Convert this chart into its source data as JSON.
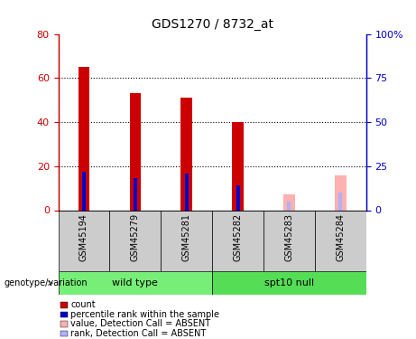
{
  "title": "GDS1270 / 8732_at",
  "samples": [
    "GSM45194",
    "GSM45279",
    "GSM45281",
    "GSM45282",
    "GSM45283",
    "GSM45284"
  ],
  "count_values": [
    65,
    53,
    51,
    40,
    0,
    0
  ],
  "rank_values": [
    22,
    18,
    21,
    14,
    0,
    0
  ],
  "absent_count_values": [
    0,
    0,
    0,
    0,
    7,
    16
  ],
  "absent_rank_values": [
    0,
    0,
    0,
    0,
    5,
    10
  ],
  "ylim_left": [
    0,
    80
  ],
  "ylim_right": [
    0,
    100
  ],
  "yticks_left": [
    0,
    20,
    40,
    60,
    80
  ],
  "ytick_labels_left": [
    "0",
    "20",
    "40",
    "60",
    "80"
  ],
  "yticks_right": [
    0,
    25,
    50,
    75,
    100
  ],
  "ytick_labels_right": [
    "0",
    "25",
    "50",
    "75",
    "100%"
  ],
  "count_color": "#cc0000",
  "rank_color": "#0000cc",
  "absent_count_color": "#ffb0b0",
  "absent_rank_color": "#b0b0ff",
  "bg_color": "#ffffff",
  "tick_area_bg": "#cccccc",
  "group_area_bg_wt": "#77ee77",
  "group_area_bg_spt": "#55dd55",
  "wild_type_label": "wild type",
  "spt10_label": "spt10 null",
  "genotype_label": "genotype/variation",
  "legend_items": [
    {
      "label": "count",
      "color": "#cc0000"
    },
    {
      "label": "percentile rank within the sample",
      "color": "#0000cc"
    },
    {
      "label": "value, Detection Call = ABSENT",
      "color": "#ffb0b0"
    },
    {
      "label": "rank, Detection Call = ABSENT",
      "color": "#b0b0ff"
    }
  ]
}
